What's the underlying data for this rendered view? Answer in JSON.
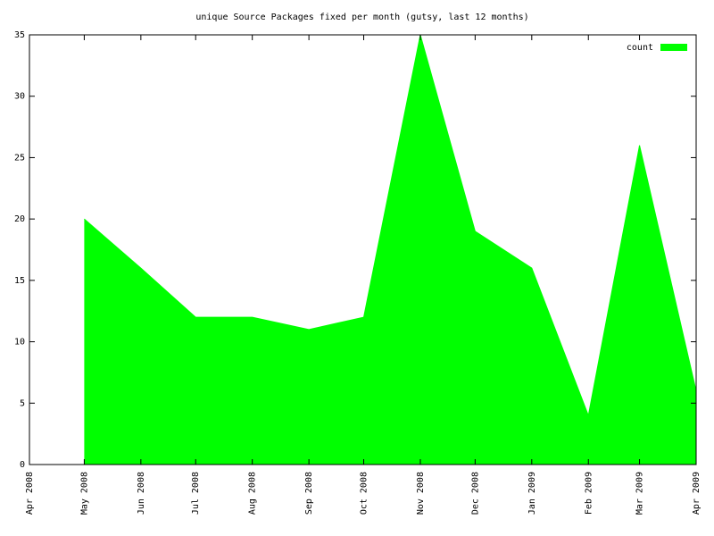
{
  "chart_data": {
    "type": "area",
    "title": "unique Source Packages fixed per month (gutsy, last 12 months)",
    "x": [
      "May 2008",
      "Jun 2008",
      "Jul 2008",
      "Aug 2008",
      "Sep 2008",
      "Oct 2008",
      "Nov 2008",
      "Dec 2008",
      "Jan 2009",
      "Feb 2009",
      "Mar 2009",
      "Apr 2009"
    ],
    "series": [
      {
        "name": "count",
        "color": "#00ff00",
        "values": [
          20,
          16,
          12,
          12,
          11,
          12,
          35,
          19,
          16,
          4,
          26,
          6
        ]
      }
    ],
    "xlim": [
      "Apr 2008",
      "Apr 2009"
    ],
    "xticks": [
      "Apr 2008",
      "May 2008",
      "Jun 2008",
      "Jul 2008",
      "Aug 2008",
      "Sep 2008",
      "Oct 2008",
      "Nov 2008",
      "Dec 2008",
      "Jan 2009",
      "Feb 2009",
      "Mar 2009",
      "Apr 2009"
    ],
    "ylim": [
      0,
      35
    ],
    "yticks": [
      0,
      5,
      10,
      15,
      20,
      25,
      30,
      35
    ],
    "legend": "top-right"
  }
}
